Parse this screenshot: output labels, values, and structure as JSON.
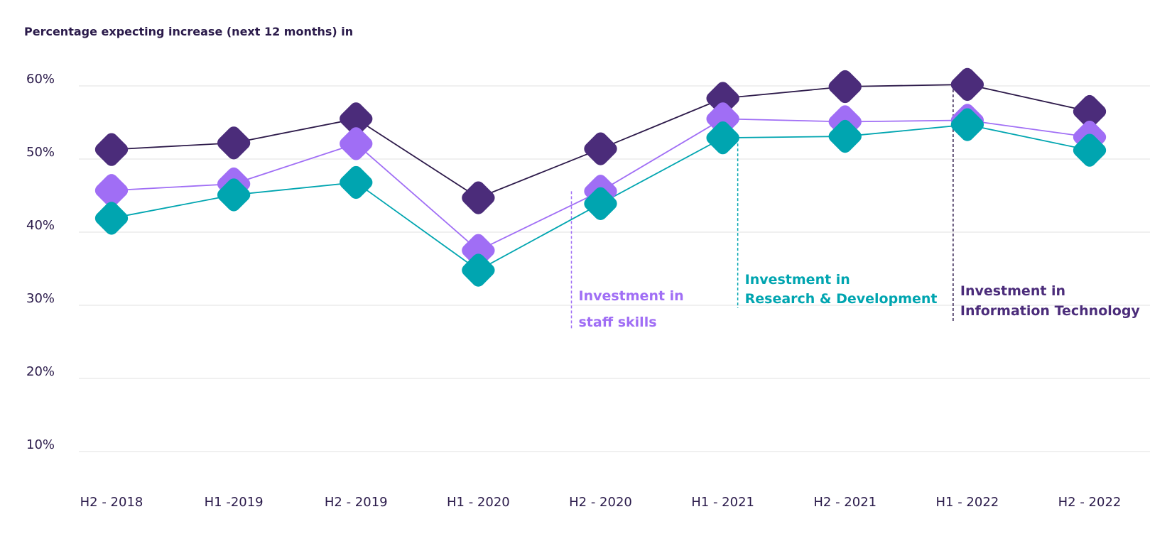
{
  "chart_data": {
    "type": "line",
    "title": "Percentage expecting increase (next 12 months) in",
    "xlabel": "",
    "ylabel": "",
    "categories": [
      "H2 - 2018",
      "H1 -2019",
      "H2 - 2019",
      "H1 - 2020",
      "H2 - 2020",
      "H1 - 2021",
      "H2 - 2021",
      "H1 - 2022",
      "H2 - 2022"
    ],
    "yticks": [
      "10%",
      "20%",
      "30%",
      "40%",
      "50%",
      "60%"
    ],
    "ytick_values": [
      10,
      20,
      30,
      40,
      50,
      60
    ],
    "ylim": [
      10,
      60
    ],
    "grid": true,
    "marker": "rounded-diamond",
    "series": [
      {
        "key": "it",
        "label_lines": [
          "Investment in",
          "Information Technology"
        ],
        "color": "#4b2c7a",
        "line_color": "#2d1a4a",
        "values": [
          51.3,
          52.2,
          55.5,
          44.7,
          51.4,
          58.3,
          59.9,
          60.2,
          56.5
        ],
        "annotation_at": "H1 - 2022"
      },
      {
        "key": "staff",
        "label_lines": [
          "Investment in",
          "staff skills"
        ],
        "color": "#a06ef5",
        "line_color": "#a06ef5",
        "values": [
          45.7,
          46.6,
          52.1,
          37.5,
          45.6,
          55.5,
          55.1,
          55.3,
          53.0
        ],
        "annotation_at": "H2 - 2020"
      },
      {
        "key": "rd",
        "label_lines": [
          "Investment in",
          "Research & Development"
        ],
        "color": "#00a5b0",
        "line_color": "#00a5b0",
        "values": [
          41.9,
          45.1,
          46.8,
          34.8,
          43.9,
          52.9,
          53.1,
          54.7,
          51.2
        ],
        "annotation_at": "H1 - 2021"
      }
    ]
  }
}
